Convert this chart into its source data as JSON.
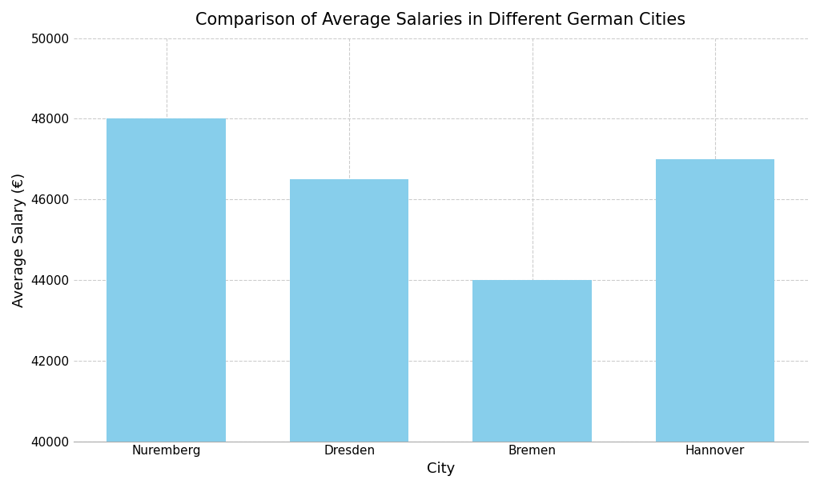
{
  "categories": [
    "Nuremberg",
    "Dresden",
    "Bremen",
    "Hannover"
  ],
  "values": [
    48000,
    46500,
    44000,
    47000
  ],
  "bar_color": "#87CEEB",
  "title": "Comparison of Average Salaries in Different German Cities",
  "xlabel": "City",
  "ylabel": "Average Salary (€)",
  "ylim": [
    40000,
    50000
  ],
  "yticks": [
    40000,
    42000,
    44000,
    46000,
    48000,
    50000
  ],
  "title_fontsize": 15,
  "label_fontsize": 13,
  "tick_fontsize": 11,
  "background_color": "#ffffff",
  "grid_color": "#cccccc",
  "bar_width": 0.65
}
